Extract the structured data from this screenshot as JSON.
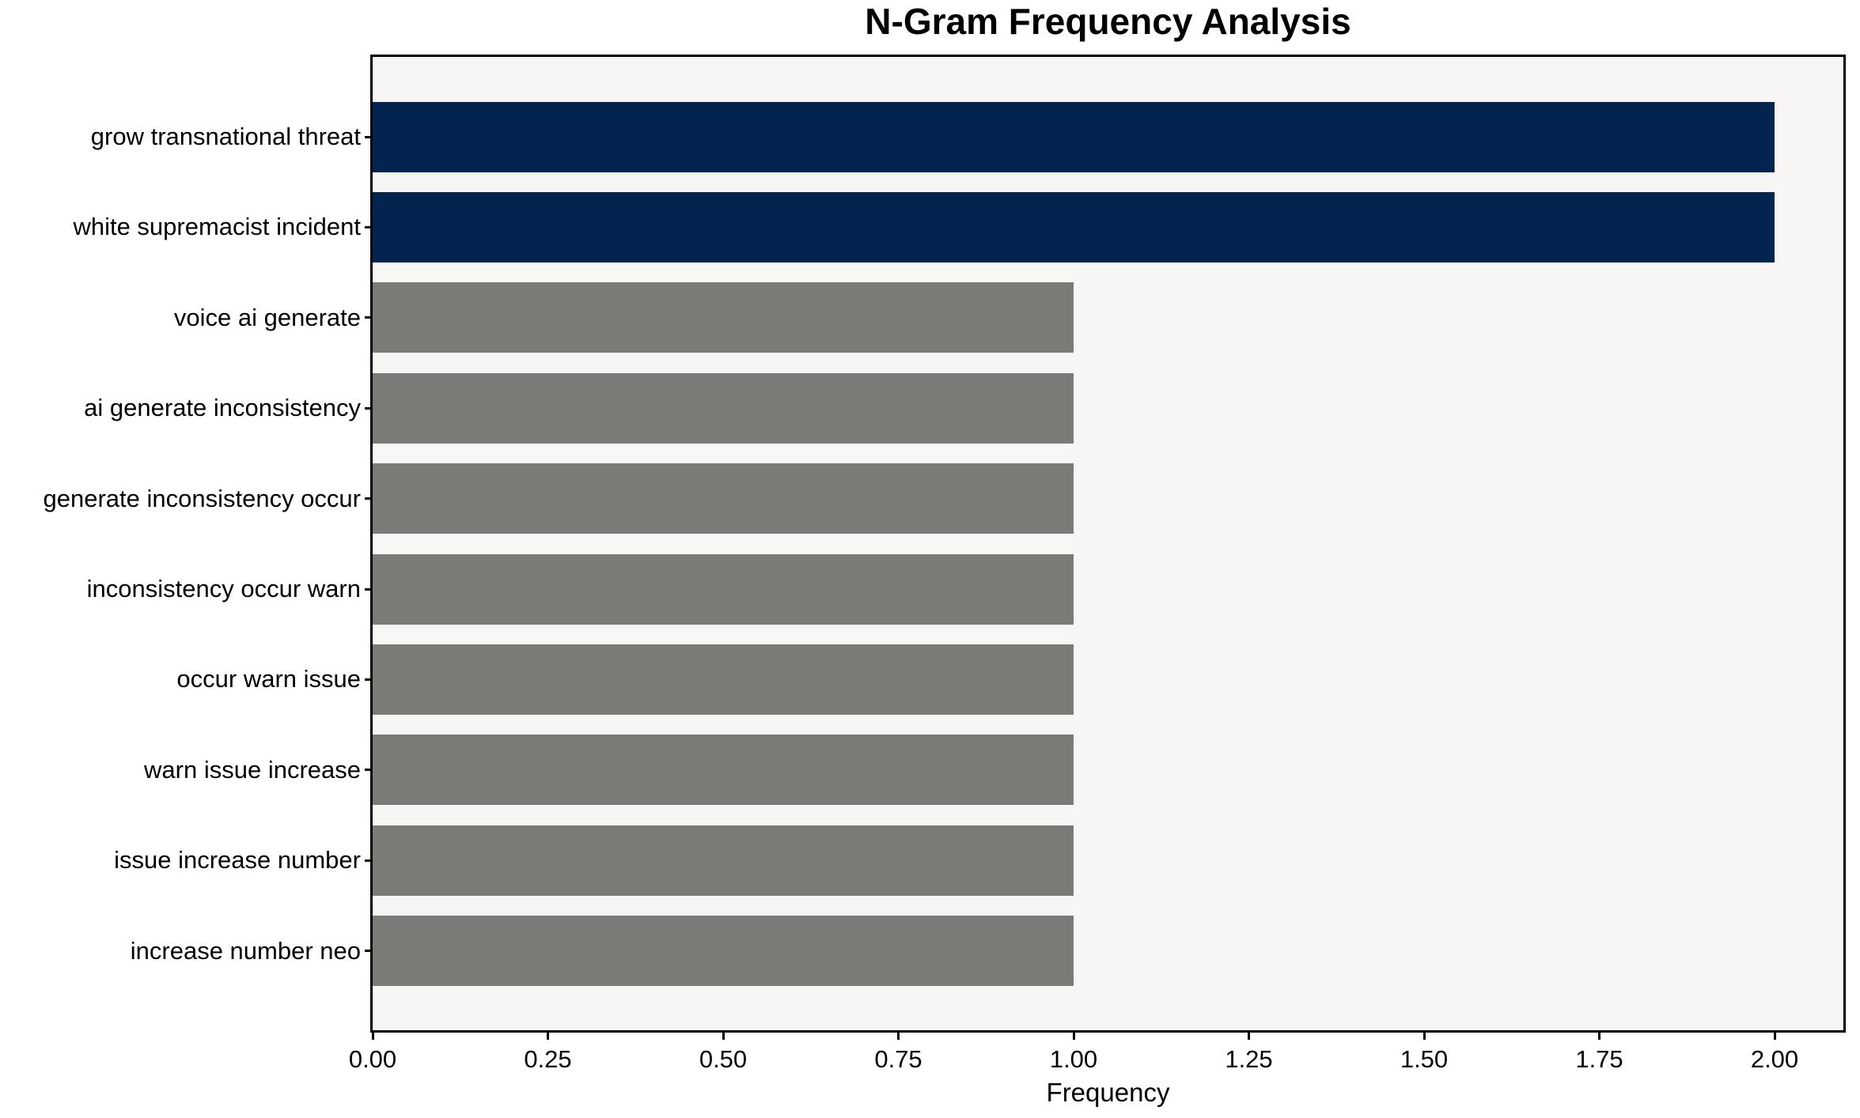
{
  "chart_data": {
    "type": "bar",
    "orientation": "horizontal",
    "title": "N-Gram Frequency Analysis",
    "xlabel": "Frequency",
    "ylabel": "",
    "categories": [
      "grow transnational threat",
      "white supremacist incident",
      "voice ai generate",
      "ai generate inconsistency",
      "generate inconsistency occur",
      "inconsistency occur warn",
      "occur warn issue",
      "warn issue increase",
      "issue increase number",
      "increase number neo"
    ],
    "values": [
      2,
      2,
      1,
      1,
      1,
      1,
      1,
      1,
      1,
      1
    ],
    "bar_colors": [
      "#02244f",
      "#02244f",
      "#7a7a77",
      "#7a7a77",
      "#7a7a77",
      "#7a7a77",
      "#7a7a77",
      "#7a7a77",
      "#7a7a77",
      "#7a7a77"
    ],
    "xlim": [
      0,
      2.1
    ],
    "xticks": [
      0,
      0.25,
      0.5,
      0.75,
      1.0,
      1.25,
      1.5,
      1.75,
      2.0
    ],
    "xtick_labels": [
      "0.00",
      "0.25",
      "0.50",
      "0.75",
      "1.00",
      "1.25",
      "1.50",
      "1.75",
      "2.00"
    ],
    "grid": false,
    "legend": null,
    "colors": {
      "highlight_bar": "#02244f",
      "default_bar": "#7a7a77",
      "plot_background": "#f7f6f5",
      "figure_background": "#ffffff",
      "spine": "#000000",
      "text": "#000000"
    }
  }
}
